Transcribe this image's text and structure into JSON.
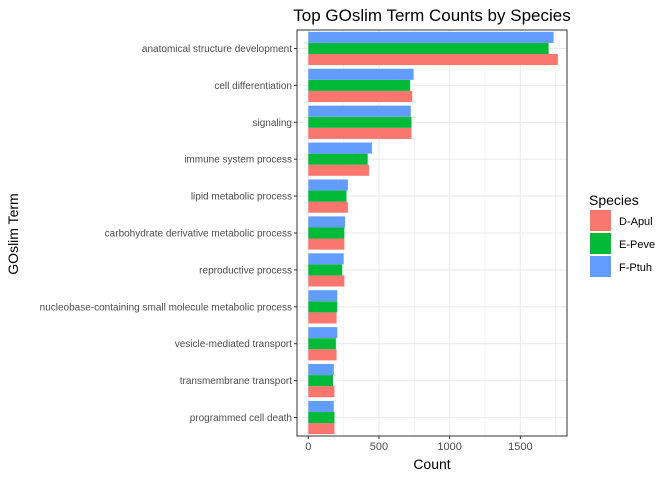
{
  "chart_data": {
    "type": "bar",
    "orientation": "horizontal",
    "title": "Top GOslim Term Counts by Species",
    "xlabel": "Count",
    "ylabel": "GOslim Term",
    "xlim": [
      -80,
      1830
    ],
    "x_ticks": [
      "0",
      "500",
      "1000",
      "1500"
    ],
    "x_tick_values": [
      0,
      500,
      1000,
      1500
    ],
    "grid": true,
    "legend_position": "right",
    "legend_title": "Species",
    "categories": [
      "anatomical structure development",
      "cell differentiation",
      "signaling",
      "immune system process",
      "lipid metabolic process",
      "carbohydrate derivative metabolic process",
      "reproductive process",
      "nucleobase-containing small molecule metabolic process",
      "vesicle-mediated transport",
      "transmembrane transport",
      "programmed cell death"
    ],
    "series": [
      {
        "name": "D-Apul",
        "color": "#F8766D",
        "values": [
          1765,
          735,
          730,
          430,
          280,
          255,
          255,
          200,
          200,
          185,
          185
        ]
      },
      {
        "name": "E-Peve",
        "color": "#00BA38",
        "values": [
          1700,
          720,
          730,
          420,
          270,
          255,
          240,
          205,
          195,
          175,
          185
        ]
      },
      {
        "name": "F-Ptuh",
        "color": "#619CFF",
        "values": [
          1735,
          745,
          725,
          450,
          280,
          260,
          250,
          205,
          205,
          180,
          180
        ]
      }
    ]
  }
}
